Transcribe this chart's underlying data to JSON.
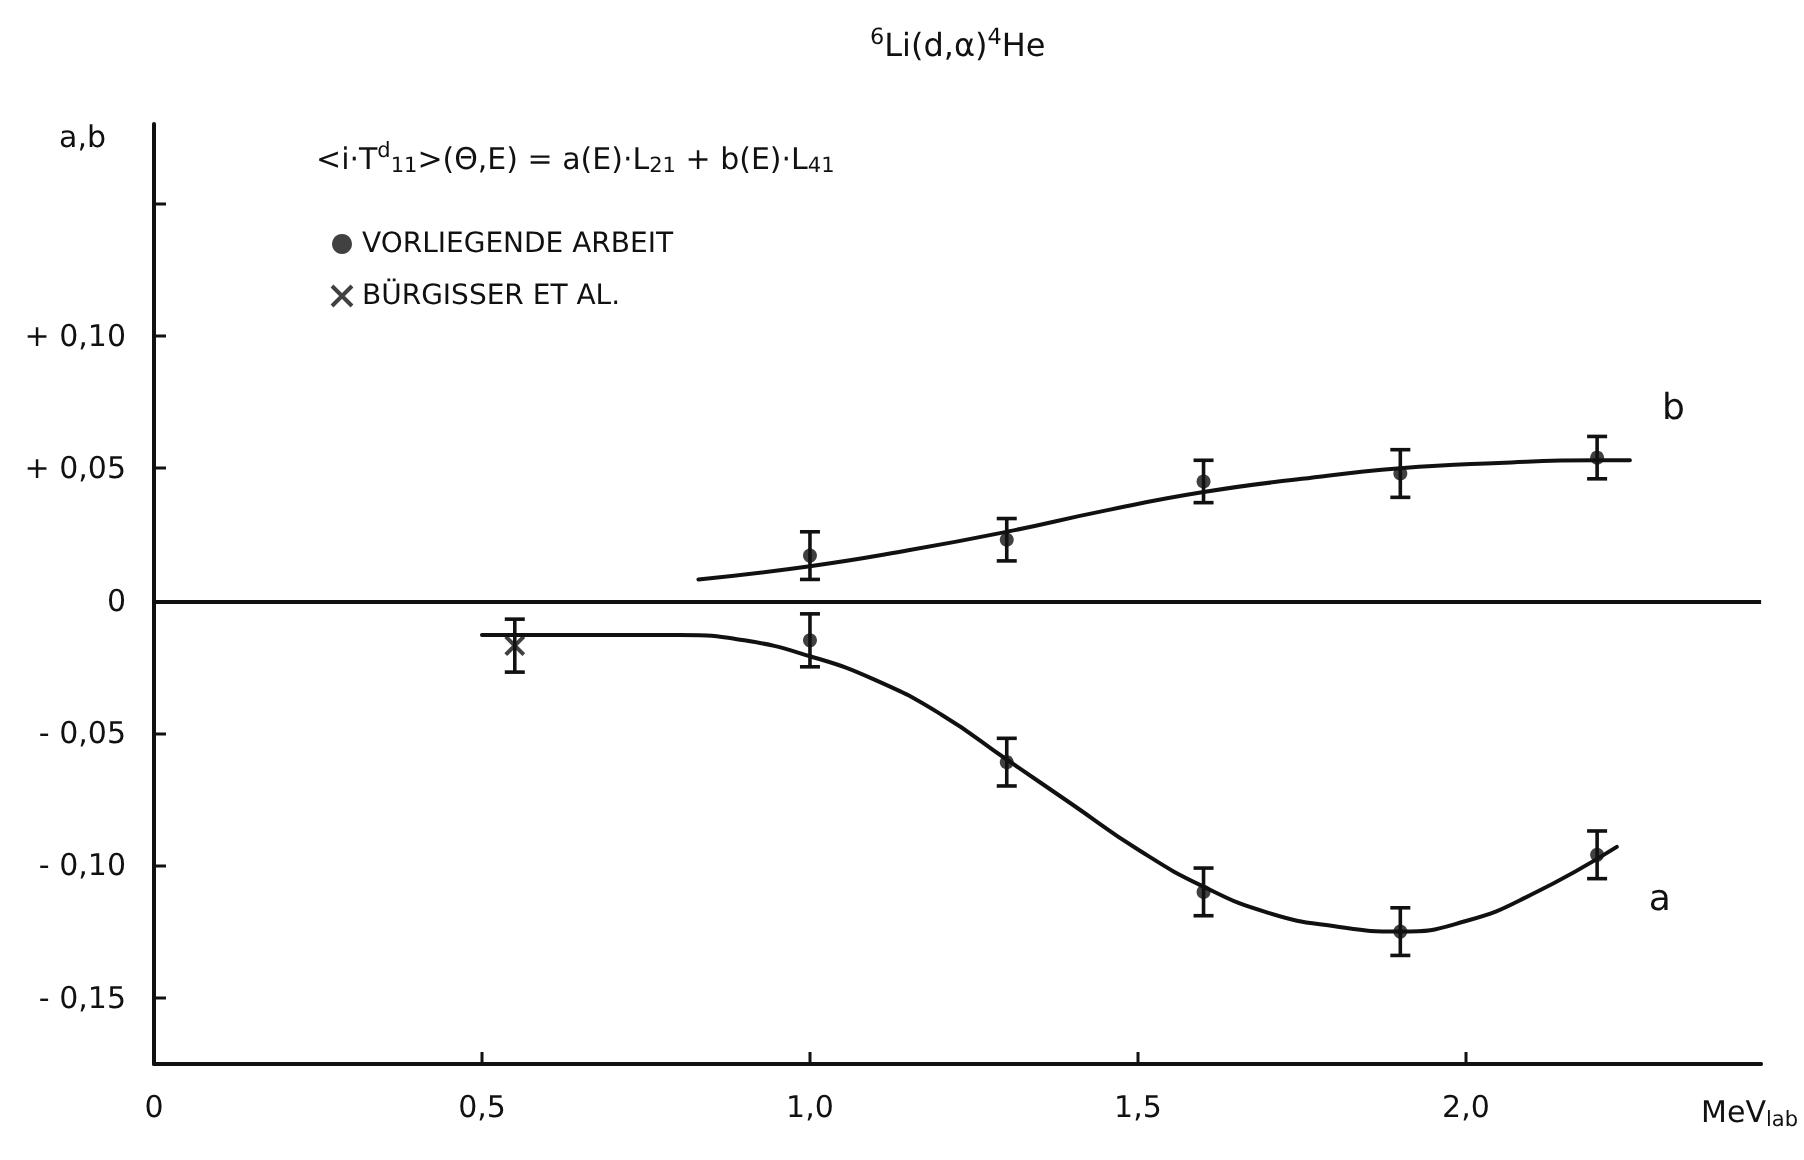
{
  "chart_data": {
    "type": "scatter",
    "title": "$^{6}$Li(d,α)$^{4}$He",
    "xlabel": "MeV$_{lab}$",
    "ylabel": "a,b",
    "annotations": [
      "<i·T$^{d}$$_{11}$>(Θ,E) = a(E)·L$_{21}$ + b(E)·L$_{41}$"
    ],
    "xlim": [
      0,
      2.45
    ],
    "xticks": [
      0,
      {
        "value": 0.5,
        "label": "0,5"
      },
      {
        "value": 1.0,
        "label": "1,0"
      },
      {
        "value": 1.5,
        "label": "1,5"
      },
      {
        "value": 2.0,
        "label": "2,0"
      }
    ],
    "ylim": [
      -0.175,
      0.18
    ],
    "yticks": [
      {
        "value": -0.15,
        "label": "- 0,15"
      },
      {
        "value": -0.1,
        "label": "- 0,10"
      },
      {
        "value": -0.05,
        "label": "- 0,05"
      },
      0,
      {
        "value": 0.05,
        "label": "+ 0,05"
      },
      {
        "value": 0.1,
        "label": "+ 0,10"
      },
      {
        "value": 0.15,
        "label": null
      }
    ],
    "grid": false,
    "legend": "top left",
    "ref_lines": [
      {
        "axis": "y",
        "value": 0,
        "color": "#111111"
      }
    ],
    "series": [
      {
        "name": "VORLIEGENDE ARBEIT",
        "marker": "circle",
        "color": "#111111",
        "x": [
          1.0,
          1.3,
          1.6,
          1.9,
          2.2,
          1.0,
          1.3,
          1.6,
          1.9,
          2.2
        ],
        "values": [
          0.017,
          0.023,
          0.045,
          0.048,
          0.054,
          -0.015,
          -0.061,
          -0.11,
          -0.125,
          -0.096
        ],
        "errors": [
          0.009,
          0.008,
          0.008,
          0.009,
          0.008,
          0.01,
          0.009,
          0.009,
          0.009,
          0.009
        ]
      },
      {
        "name": "BÜRGISSER ET AL.",
        "marker": "cross",
        "color": "#111111",
        "x": [
          0.55
        ],
        "values": [
          -0.017
        ],
        "errors": [
          0.01
        ]
      },
      {
        "name": "b",
        "type": "line",
        "marker": "none",
        "line_style": "solid",
        "color": "#111111",
        "x": [
          0.83,
          1.0,
          1.15,
          1.3,
          1.45,
          1.6,
          1.75,
          1.9,
          2.05,
          2.2,
          2.25
        ],
        "values": [
          0.008,
          0.013,
          0.019,
          0.026,
          0.034,
          0.041,
          0.046,
          0.05,
          0.052,
          0.053,
          0.053
        ]
      },
      {
        "name": "a",
        "type": "line",
        "marker": "none",
        "line_style": "solid",
        "color": "#111111",
        "x": [
          0.5,
          0.8,
          0.9,
          1.0,
          1.1,
          1.2,
          1.3,
          1.4,
          1.5,
          1.6,
          1.7,
          1.8,
          1.9,
          2.0,
          2.1,
          2.23
        ],
        "values": [
          -0.013,
          -0.013,
          -0.015,
          -0.021,
          -0.03,
          -0.043,
          -0.06,
          -0.077,
          -0.094,
          -0.108,
          -0.118,
          -0.123,
          -0.125,
          -0.121,
          -0.111,
          -0.093
        ]
      }
    ]
  }
}
